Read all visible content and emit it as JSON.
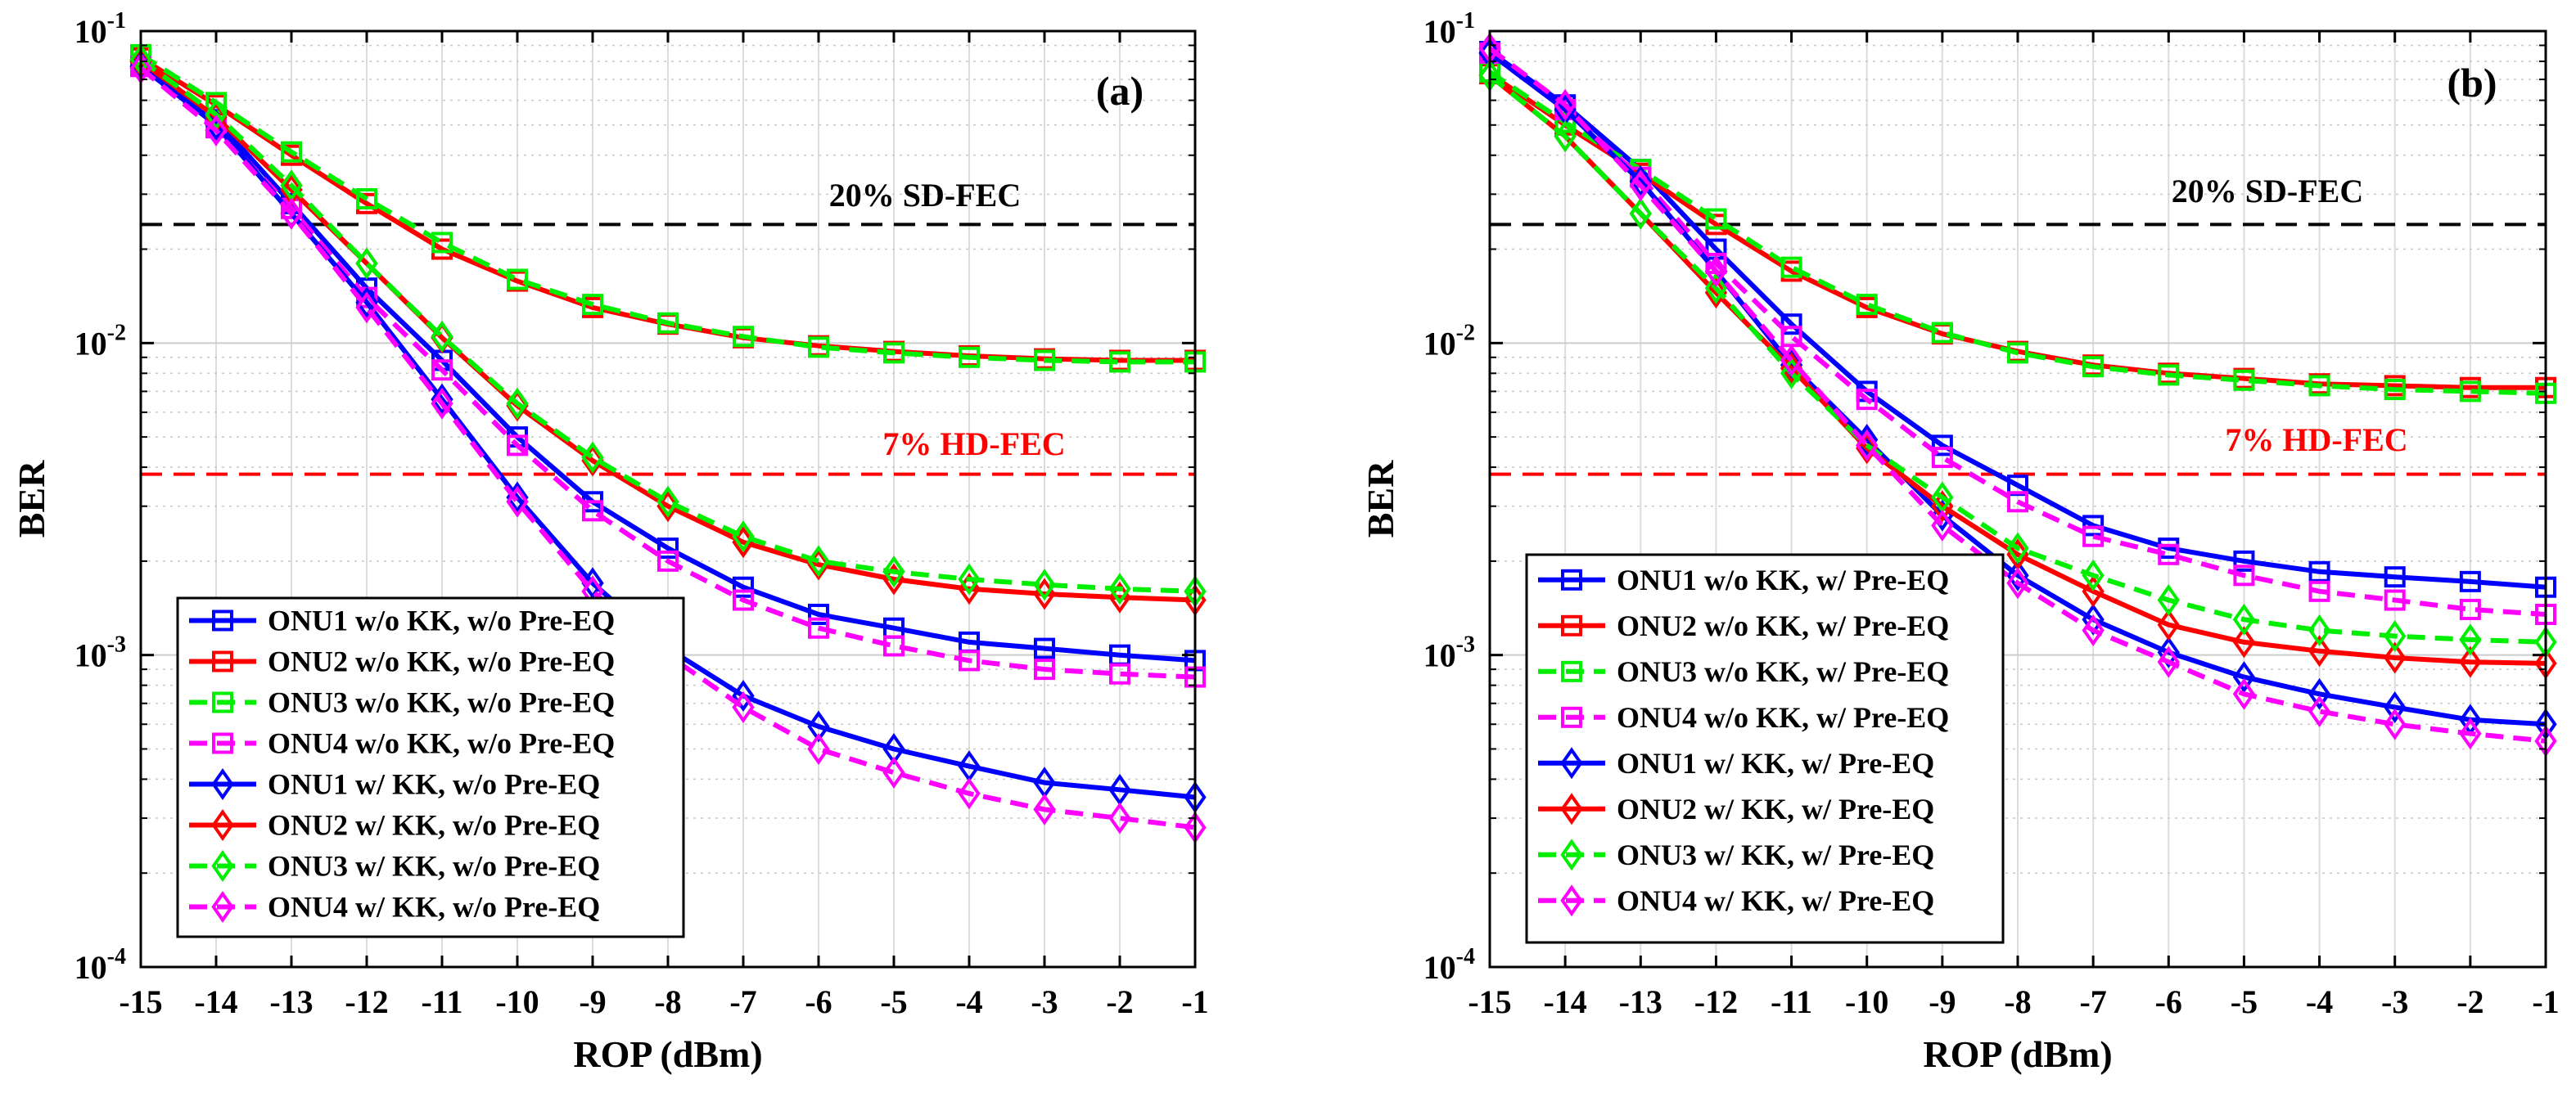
{
  "chart_data": [
    {
      "type": "line",
      "panel_label": "(a)",
      "xlabel": "ROP (dBm)",
      "ylabel": "BER",
      "yscale": "log",
      "xlim": [
        -15,
        -1
      ],
      "ylim": [
        0.0001,
        0.1
      ],
      "x": [
        -15,
        -14,
        -13,
        -12,
        -11,
        -10,
        -9,
        -8,
        -7,
        -6,
        -5,
        -4,
        -3,
        -2,
        -1
      ],
      "x_tick_labels": [
        "-15",
        "-14",
        "-13",
        "-12",
        "-11",
        "-10",
        "-9",
        "-8",
        "-7",
        "-6",
        "-5",
        "-4",
        "-3",
        "-2",
        "-1"
      ],
      "y_tick_labels": [
        {
          "base": "10",
          "exp": "-4"
        },
        {
          "base": "10",
          "exp": "-3"
        },
        {
          "base": "10",
          "exp": "-2"
        },
        {
          "base": "10",
          "exp": "-1"
        }
      ],
      "grid": true,
      "legend_position": "bottom-left",
      "thresholds": [
        {
          "label": "20% SD-FEC",
          "value": 0.024,
          "color": "#000000"
        },
        {
          "label": "7% HD-FEC",
          "value": 0.0038,
          "color": "#ff0000"
        }
      ],
      "series": [
        {
          "name": "ONU1 w/o KK, w/o Pre-EQ",
          "color": "#0000ff",
          "dash": "solid",
          "marker": "square",
          "values": [
            0.078,
            0.052,
            0.028,
            0.015,
            0.0088,
            0.005,
            0.0031,
            0.0022,
            0.00165,
            0.00135,
            0.00122,
            0.0011,
            0.00105,
            0.001,
            0.00096
          ]
        },
        {
          "name": "ONU2 w/o KK, w/o Pre-EQ",
          "color": "#ff0000",
          "dash": "solid",
          "marker": "square",
          "values": [
            0.082,
            0.058,
            0.04,
            0.028,
            0.02,
            0.0158,
            0.013,
            0.0115,
            0.0104,
            0.0098,
            0.0094,
            0.0091,
            0.0089,
            0.0088,
            0.0088
          ]
        },
        {
          "name": "ONU3 w/o KK, w/o Pre-EQ",
          "color": "#00ee00",
          "dash": "dashed",
          "marker": "square",
          "values": [
            0.084,
            0.059,
            0.041,
            0.029,
            0.021,
            0.016,
            0.0133,
            0.0116,
            0.0105,
            0.0097,
            0.0093,
            0.009,
            0.0088,
            0.0087,
            0.0087
          ]
        },
        {
          "name": "ONU4 w/o KK, w/o Pre-EQ",
          "color": "#ff00ff",
          "dash": "dashed",
          "marker": "square",
          "values": [
            0.077,
            0.049,
            0.027,
            0.014,
            0.0082,
            0.0047,
            0.0029,
            0.002,
            0.0015,
            0.00122,
            0.00107,
            0.00096,
            0.0009,
            0.00087,
            0.00085
          ]
        },
        {
          "name": "ONU1 w/ KK, w/o Pre-EQ",
          "color": "#0000ff",
          "dash": "solid",
          "marker": "diamond",
          "values": [
            0.077,
            0.05,
            0.026,
            0.0135,
            0.0066,
            0.0032,
            0.0017,
            0.00105,
            0.00074,
            0.00059,
            0.0005,
            0.00044,
            0.00039,
            0.00037,
            0.00035
          ]
        },
        {
          "name": "ONU2 w/ KK, w/o Pre-EQ",
          "color": "#ff0000",
          "dash": "solid",
          "marker": "diamond",
          "values": [
            0.08,
            0.053,
            0.031,
            0.018,
            0.0104,
            0.0063,
            0.0042,
            0.003,
            0.0023,
            0.00195,
            0.00175,
            0.00163,
            0.00157,
            0.00153,
            0.0015
          ]
        },
        {
          "name": "ONU3 w/ KK, w/o Pre-EQ",
          "color": "#00ee00",
          "dash": "dashed",
          "marker": "diamond",
          "values": [
            0.081,
            0.054,
            0.032,
            0.018,
            0.0105,
            0.0064,
            0.0043,
            0.0031,
            0.0024,
            0.002,
            0.00185,
            0.00175,
            0.00168,
            0.00163,
            0.0016
          ]
        },
        {
          "name": "ONU4 w/ KK, w/o Pre-EQ",
          "color": "#ff00ff",
          "dash": "dashed",
          "marker": "diamond",
          "values": [
            0.076,
            0.048,
            0.026,
            0.013,
            0.0064,
            0.0031,
            0.0016,
            0.001,
            0.00068,
            0.0005,
            0.00042,
            0.00036,
            0.00032,
            0.0003,
            0.00028
          ]
        }
      ]
    },
    {
      "type": "line",
      "panel_label": "(b)",
      "xlabel": "ROP (dBm)",
      "ylabel": "BER",
      "yscale": "log",
      "xlim": [
        -15,
        -1
      ],
      "ylim": [
        0.0001,
        0.1
      ],
      "x": [
        -15,
        -14,
        -13,
        -12,
        -11,
        -10,
        -9,
        -8,
        -7,
        -6,
        -5,
        -4,
        -3,
        -2,
        -1
      ],
      "x_tick_labels": [
        "-15",
        "-14",
        "-13",
        "-12",
        "-11",
        "-10",
        "-9",
        "-8",
        "-7",
        "-6",
        "-5",
        "-4",
        "-3",
        "-2",
        "-1"
      ],
      "y_tick_labels": [
        {
          "base": "10",
          "exp": "-4"
        },
        {
          "base": "10",
          "exp": "-3"
        },
        {
          "base": "10",
          "exp": "-2"
        },
        {
          "base": "10",
          "exp": "-1"
        }
      ],
      "grid": true,
      "legend_position": "bottom-left",
      "thresholds": [
        {
          "label": "20% SD-FEC",
          "value": 0.024,
          "color": "#000000"
        },
        {
          "label": "7% HD-FEC",
          "value": 0.0038,
          "color": "#ff0000"
        }
      ],
      "series": [
        {
          "name": "ONU1 w/o KK, w/ Pre-EQ",
          "color": "#0000ff",
          "dash": "solid",
          "marker": "square",
          "values": [
            0.086,
            0.058,
            0.036,
            0.02,
            0.0115,
            0.007,
            0.0047,
            0.0035,
            0.0026,
            0.0022,
            0.002,
            0.00185,
            0.00178,
            0.00172,
            0.00165
          ]
        },
        {
          "name": "ONU2 w/o KK, w/ Pre-EQ",
          "color": "#ff0000",
          "dash": "solid",
          "marker": "square",
          "values": [
            0.073,
            0.05,
            0.035,
            0.024,
            0.017,
            0.013,
            0.0107,
            0.0094,
            0.0085,
            0.008,
            0.0077,
            0.0074,
            0.0073,
            0.0072,
            0.0072
          ]
        },
        {
          "name": "ONU3 w/o KK, w/ Pre-EQ",
          "color": "#00ee00",
          "dash": "dashed",
          "marker": "square",
          "values": [
            0.074,
            0.051,
            0.036,
            0.025,
            0.0175,
            0.0133,
            0.0108,
            0.0093,
            0.0084,
            0.0079,
            0.0076,
            0.0073,
            0.0071,
            0.007,
            0.0069
          ]
        },
        {
          "name": "ONU4 w/o KK, w/ Pre-EQ",
          "color": "#ff00ff",
          "dash": "dashed",
          "marker": "square",
          "values": [
            0.085,
            0.056,
            0.034,
            0.018,
            0.0105,
            0.0066,
            0.0043,
            0.0031,
            0.0024,
            0.0021,
            0.0018,
            0.0016,
            0.0015,
            0.0014,
            0.00135
          ]
        },
        {
          "name": "ONU1 w/ KK, w/ Pre-EQ",
          "color": "#0000ff",
          "dash": "solid",
          "marker": "diamond",
          "values": [
            0.085,
            0.056,
            0.033,
            0.017,
            0.0085,
            0.0049,
            0.0028,
            0.0018,
            0.0013,
            0.00102,
            0.00085,
            0.00075,
            0.00068,
            0.00062,
            0.0006
          ]
        },
        {
          "name": "ONU2 w/ KK, w/ Pre-EQ",
          "color": "#ff0000",
          "dash": "solid",
          "marker": "diamond",
          "values": [
            0.072,
            0.046,
            0.026,
            0.0145,
            0.0083,
            0.0046,
            0.003,
            0.0021,
            0.0016,
            0.00125,
            0.0011,
            0.00103,
            0.00098,
            0.00095,
            0.00094
          ]
        },
        {
          "name": "ONU3 w/ KK, w/ Pre-EQ",
          "color": "#00ee00",
          "dash": "dashed",
          "marker": "diamond",
          "values": [
            0.072,
            0.046,
            0.026,
            0.015,
            0.008,
            0.0047,
            0.0032,
            0.0022,
            0.0018,
            0.0015,
            0.0013,
            0.0012,
            0.00115,
            0.00112,
            0.0011
          ]
        },
        {
          "name": "ONU4 w/ KK, w/ Pre-EQ",
          "color": "#ff00ff",
          "dash": "dashed",
          "marker": "diamond",
          "values": [
            0.088,
            0.058,
            0.032,
            0.017,
            0.0088,
            0.0047,
            0.0026,
            0.0017,
            0.0012,
            0.00095,
            0.00075,
            0.00066,
            0.0006,
            0.00056,
            0.00053
          ]
        }
      ]
    }
  ]
}
